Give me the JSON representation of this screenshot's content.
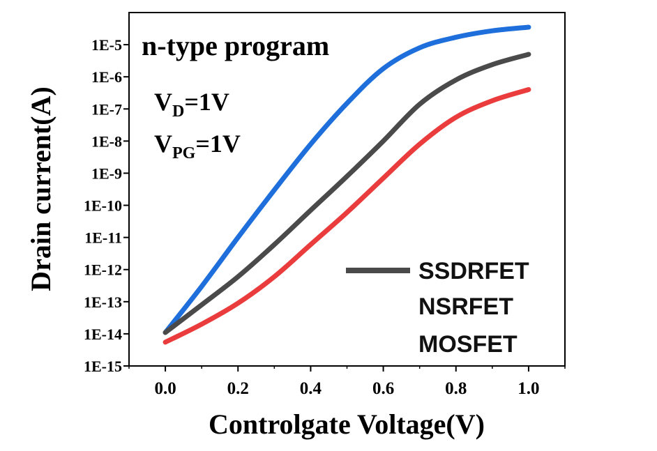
{
  "chart_data": {
    "type": "line",
    "title": "n-type program",
    "xlabel": "Controlgate Voltage(V)",
    "ylabel": "Drain current(A)",
    "xlim": [
      -0.1,
      1.1
    ],
    "ylim": [
      1e-15,
      0.0001
    ],
    "yscale": "log",
    "xticks": [
      0.0,
      0.2,
      0.4,
      0.6,
      0.8,
      1.0
    ],
    "xtick_labels": [
      "0.0",
      "0.2",
      "0.4",
      "0.6",
      "0.8",
      "1.0"
    ],
    "yticks": [
      1e-15,
      1e-14,
      1e-13,
      1e-12,
      1e-11,
      1e-10,
      1e-09,
      1e-08,
      1e-07,
      1e-06,
      1e-05
    ],
    "ytick_labels": [
      "1E-15",
      "1E-14",
      "1E-13",
      "1E-12",
      "1E-11",
      "1E-10",
      "1E-9",
      "1E-8",
      "1E-7",
      "1E-6",
      "1E-5"
    ],
    "annotations": {
      "vd": {
        "base": "V",
        "sub": "D",
        "rest": "=1V"
      },
      "vpg": {
        "base": "V",
        "sub": "PG",
        "rest": "=1V"
      }
    },
    "legend_placement": "bottom-right",
    "grid": false,
    "x": [
      0.0,
      0.1,
      0.2,
      0.3,
      0.4,
      0.5,
      0.6,
      0.7,
      0.8,
      0.9,
      1.0
    ],
    "series": [
      {
        "name": "SSDRFET",
        "color": "#1e6fdc",
        "values": [
          1.1e-14,
          3e-13,
          1e-11,
          3e-10,
          8e-09,
          1.5e-07,
          1.8e-06,
          8e-06,
          1.7e-05,
          2.7e-05,
          3.5e-05
        ]
      },
      {
        "name": "NSRFET",
        "color": "#4a4a4a",
        "values": [
          1.1e-14,
          8e-14,
          6e-13,
          6e-12,
          7e-11,
          8e-10,
          1e-08,
          1.4e-07,
          8e-07,
          2.4e-06,
          5e-06
        ]
      },
      {
        "name": "MOSFET",
        "color": "#ea3c3c",
        "values": [
          5.5e-15,
          2e-14,
          9e-14,
          6e-13,
          6e-12,
          6e-11,
          7e-10,
          8e-09,
          5.5e-08,
          1.8e-07,
          4e-07
        ]
      }
    ]
  }
}
